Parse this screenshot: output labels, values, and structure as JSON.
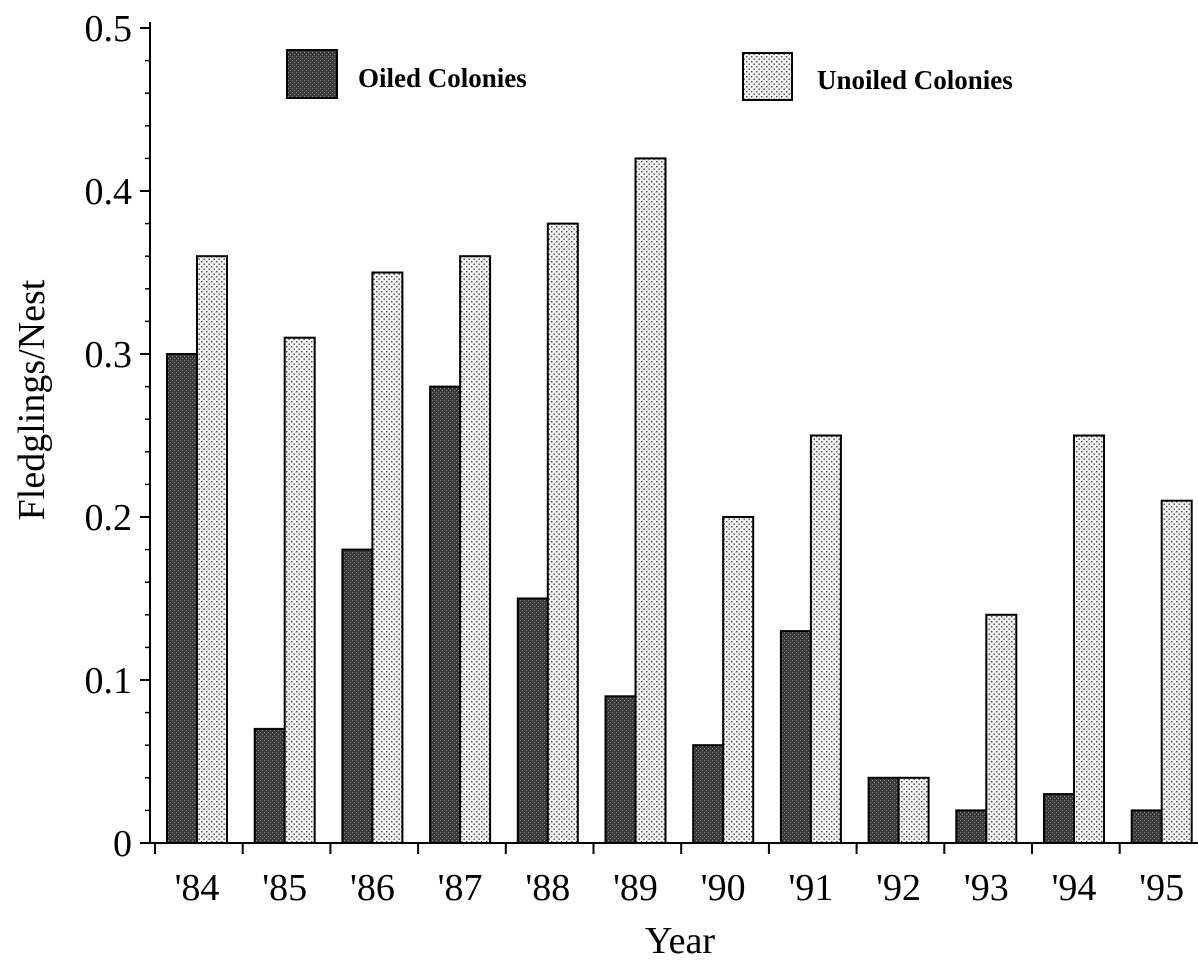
{
  "chart_data": {
    "type": "bar",
    "title": "",
    "xlabel": "Year",
    "ylabel": "Fledglings/Nest",
    "ylim": [
      0,
      0.5
    ],
    "y_ticks": [
      "0",
      "0.1",
      "0.2",
      "0.3",
      "0.4",
      "0.5"
    ],
    "categories": [
      "'84",
      "'85",
      "'86",
      "'87",
      "'88",
      "'89",
      "'90",
      "'91",
      "'92",
      "'93",
      "'94",
      "'95"
    ],
    "series": [
      {
        "name": "Oiled Colonies",
        "color": "#3a3a3a",
        "values": [
          0.3,
          0.07,
          0.18,
          0.28,
          0.15,
          0.09,
          0.06,
          0.13,
          0.04,
          0.02,
          0.03,
          0.02
        ]
      },
      {
        "name": "Unoiled Colonies",
        "color": "#d4d4d4",
        "values": [
          0.36,
          0.31,
          0.35,
          0.36,
          0.38,
          0.42,
          0.2,
          0.25,
          0.04,
          0.14,
          0.25,
          0.21
        ]
      }
    ],
    "legend_position": "top",
    "grid": false
  }
}
